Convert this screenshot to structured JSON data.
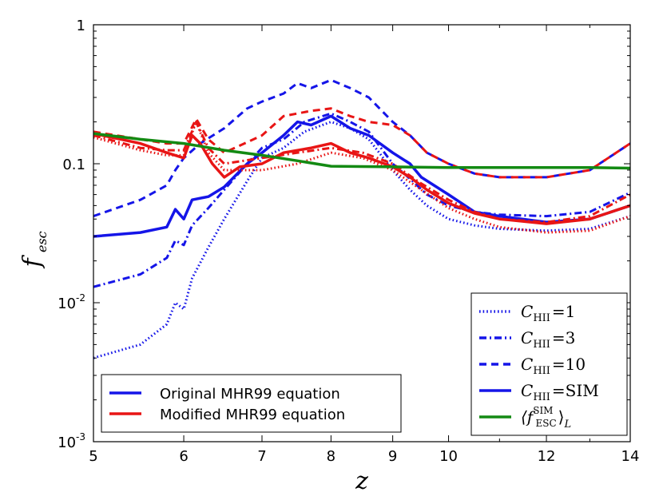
{
  "chart_data": {
    "type": "line",
    "title": "",
    "xlabel": "z",
    "ylabel_main": "f",
    "ylabel_sub": "esc",
    "xscale": "linear-in-log(1+z)",
    "yscale": "log",
    "xlim": [
      5,
      14
    ],
    "ylim": [
      0.001,
      1
    ],
    "x_ticks": [
      5,
      6,
      7,
      8,
      9,
      10,
      12,
      14
    ],
    "x_tick_labels": [
      "5",
      "6",
      "7",
      "8",
      "9",
      "10",
      "12",
      "14"
    ],
    "y_ticks": [
      0.001,
      0.01,
      0.1,
      1
    ],
    "y_tick_labels": [
      {
        "base": "10",
        "exp": "-3"
      },
      {
        "base": "10",
        "exp": "-2"
      },
      {
        "base": "0.1",
        "exp": ""
      },
      {
        "base": "1",
        "exp": ""
      }
    ],
    "legend_top_right": {
      "position": "lower-right",
      "entries": [
        {
          "main": "C",
          "sub": "HII",
          "rest": "=1",
          "style": "dotted",
          "color": "#1515e8"
        },
        {
          "main": "C",
          "sub": "HII",
          "rest": "=3",
          "style": "dashdot",
          "color": "#1515e8"
        },
        {
          "main": "C",
          "sub": "HII",
          "rest": "=10",
          "style": "dashed",
          "color": "#1515e8"
        },
        {
          "main": "C",
          "sub": "HII",
          "rest": "=SIM",
          "style": "solid",
          "color": "#1515e8"
        },
        {
          "main": "⟨f",
          "sub": "ESC",
          "sup": "SIM",
          "rest": "⟩",
          "tail": "L",
          "style": "solid",
          "color": "#138a13"
        }
      ]
    },
    "legend_bottom_left": {
      "position": "lower-left",
      "entries": [
        {
          "label": "Original MHR99 equation",
          "color": "#1515e8"
        },
        {
          "label": "Modified MHR99 equation",
          "color": "#e81515"
        }
      ]
    },
    "series": [
      {
        "name": "Original C_HII=1",
        "color": "#1515e8",
        "style": "dotted",
        "points": [
          [
            5,
            0.004
          ],
          [
            5.5,
            0.005
          ],
          [
            5.8,
            0.007
          ],
          [
            5.9,
            0.01
          ],
          [
            6.0,
            0.009
          ],
          [
            6.1,
            0.015
          ],
          [
            6.3,
            0.025
          ],
          [
            6.5,
            0.04
          ],
          [
            6.8,
            0.075
          ],
          [
            7.0,
            0.11
          ],
          [
            7.3,
            0.13
          ],
          [
            7.6,
            0.17
          ],
          [
            8.0,
            0.2
          ],
          [
            8.3,
            0.18
          ],
          [
            8.6,
            0.15
          ],
          [
            9.0,
            0.09
          ],
          [
            9.3,
            0.065
          ],
          [
            9.6,
            0.05
          ],
          [
            10.0,
            0.04
          ],
          [
            10.5,
            0.036
          ],
          [
            11.0,
            0.034
          ],
          [
            12.0,
            0.033
          ],
          [
            13.0,
            0.034
          ],
          [
            14.0,
            0.042
          ]
        ]
      },
      {
        "name": "Original C_HII=3",
        "color": "#1515e8",
        "style": "dashdot",
        "points": [
          [
            5,
            0.013
          ],
          [
            5.5,
            0.016
          ],
          [
            5.8,
            0.021
          ],
          [
            5.9,
            0.028
          ],
          [
            6.0,
            0.026
          ],
          [
            6.1,
            0.036
          ],
          [
            6.3,
            0.048
          ],
          [
            6.5,
            0.065
          ],
          [
            6.8,
            0.1
          ],
          [
            7.0,
            0.13
          ],
          [
            7.3,
            0.15
          ],
          [
            7.6,
            0.2
          ],
          [
            8.0,
            0.23
          ],
          [
            8.3,
            0.2
          ],
          [
            8.6,
            0.17
          ],
          [
            9.0,
            0.1
          ],
          [
            9.3,
            0.078
          ],
          [
            9.6,
            0.06
          ],
          [
            10.0,
            0.05
          ],
          [
            10.5,
            0.045
          ],
          [
            11.0,
            0.043
          ],
          [
            12.0,
            0.042
          ],
          [
            13.0,
            0.045
          ],
          [
            14.0,
            0.062
          ]
        ]
      },
      {
        "name": "Original C_HII=10",
        "color": "#1515e8",
        "style": "dashed",
        "points": [
          [
            5,
            0.042
          ],
          [
            5.5,
            0.055
          ],
          [
            5.8,
            0.07
          ],
          [
            5.9,
            0.09
          ],
          [
            6.0,
            0.11
          ],
          [
            6.2,
            0.14
          ],
          [
            6.5,
            0.18
          ],
          [
            6.8,
            0.25
          ],
          [
            7.0,
            0.28
          ],
          [
            7.3,
            0.32
          ],
          [
            7.5,
            0.38
          ],
          [
            7.7,
            0.35
          ],
          [
            8.0,
            0.4
          ],
          [
            8.3,
            0.35
          ],
          [
            8.6,
            0.3
          ],
          [
            9.0,
            0.2
          ],
          [
            9.3,
            0.16
          ],
          [
            9.6,
            0.12
          ],
          [
            10.0,
            0.1
          ],
          [
            10.5,
            0.085
          ],
          [
            11.0,
            0.08
          ],
          [
            12.0,
            0.08
          ],
          [
            13.0,
            0.09
          ],
          [
            14.0,
            0.14
          ]
        ]
      },
      {
        "name": "Original C_HII=SIM",
        "color": "#1515e8",
        "style": "solid",
        "points": [
          [
            5,
            0.03
          ],
          [
            5.5,
            0.032
          ],
          [
            5.8,
            0.035
          ],
          [
            5.9,
            0.047
          ],
          [
            6.0,
            0.04
          ],
          [
            6.1,
            0.055
          ],
          [
            6.3,
            0.058
          ],
          [
            6.5,
            0.068
          ],
          [
            6.8,
            0.1
          ],
          [
            7.0,
            0.12
          ],
          [
            7.3,
            0.16
          ],
          [
            7.5,
            0.2
          ],
          [
            7.7,
            0.19
          ],
          [
            8.0,
            0.22
          ],
          [
            8.3,
            0.18
          ],
          [
            8.6,
            0.16
          ],
          [
            9.0,
            0.12
          ],
          [
            9.3,
            0.1
          ],
          [
            9.5,
            0.08
          ],
          [
            10.0,
            0.06
          ],
          [
            10.5,
            0.045
          ],
          [
            11.0,
            0.042
          ],
          [
            12.0,
            0.038
          ],
          [
            13.0,
            0.04
          ],
          [
            14.0,
            0.05
          ]
        ]
      },
      {
        "name": "Modified C_HII=1",
        "color": "#e81515",
        "style": "dotted",
        "points": [
          [
            5,
            0.155
          ],
          [
            5.5,
            0.125
          ],
          [
            5.8,
            0.115
          ],
          [
            6.0,
            0.115
          ],
          [
            6.15,
            0.2
          ],
          [
            6.3,
            0.12
          ],
          [
            6.5,
            0.09
          ],
          [
            7.0,
            0.09
          ],
          [
            7.5,
            0.1
          ],
          [
            8.0,
            0.12
          ],
          [
            8.5,
            0.11
          ],
          [
            9.0,
            0.09
          ],
          [
            9.5,
            0.065
          ],
          [
            10.0,
            0.048
          ],
          [
            10.5,
            0.04
          ],
          [
            11.0,
            0.035
          ],
          [
            12.0,
            0.032
          ],
          [
            13.0,
            0.033
          ],
          [
            14.0,
            0.042
          ]
        ]
      },
      {
        "name": "Modified C_HII=3",
        "color": "#e81515",
        "style": "dashdot",
        "points": [
          [
            5,
            0.16
          ],
          [
            5.5,
            0.13
          ],
          [
            5.8,
            0.125
          ],
          [
            6.0,
            0.125
          ],
          [
            6.15,
            0.2
          ],
          [
            6.3,
            0.13
          ],
          [
            6.5,
            0.1
          ],
          [
            7.0,
            0.11
          ],
          [
            7.5,
            0.12
          ],
          [
            8.0,
            0.13
          ],
          [
            8.5,
            0.12
          ],
          [
            9.0,
            0.1
          ],
          [
            9.5,
            0.072
          ],
          [
            10.0,
            0.055
          ],
          [
            10.5,
            0.045
          ],
          [
            11.0,
            0.04
          ],
          [
            12.0,
            0.038
          ],
          [
            13.0,
            0.042
          ],
          [
            14.0,
            0.06
          ]
        ]
      },
      {
        "name": "Modified C_HII=10",
        "color": "#e81515",
        "style": "dashed",
        "points": [
          [
            5,
            0.17
          ],
          [
            5.5,
            0.15
          ],
          [
            5.8,
            0.14
          ],
          [
            6.0,
            0.14
          ],
          [
            6.15,
            0.21
          ],
          [
            6.3,
            0.15
          ],
          [
            6.5,
            0.12
          ],
          [
            7.0,
            0.16
          ],
          [
            7.3,
            0.22
          ],
          [
            7.7,
            0.24
          ],
          [
            8.0,
            0.25
          ],
          [
            8.3,
            0.22
          ],
          [
            8.6,
            0.2
          ],
          [
            9.0,
            0.19
          ],
          [
            9.3,
            0.16
          ],
          [
            9.6,
            0.12
          ],
          [
            10.0,
            0.1
          ],
          [
            10.5,
            0.085
          ],
          [
            11.0,
            0.08
          ],
          [
            12.0,
            0.08
          ],
          [
            13.0,
            0.09
          ],
          [
            14.0,
            0.14
          ]
        ]
      },
      {
        "name": "Modified C_HII=SIM",
        "color": "#e81515",
        "style": "solid",
        "points": [
          [
            5,
            0.165
          ],
          [
            5.5,
            0.14
          ],
          [
            5.8,
            0.12
          ],
          [
            6.0,
            0.11
          ],
          [
            6.1,
            0.16
          ],
          [
            6.2,
            0.14
          ],
          [
            6.35,
            0.1
          ],
          [
            6.5,
            0.08
          ],
          [
            6.7,
            0.095
          ],
          [
            7.0,
            0.1
          ],
          [
            7.3,
            0.12
          ],
          [
            7.7,
            0.13
          ],
          [
            8.0,
            0.14
          ],
          [
            8.3,
            0.12
          ],
          [
            8.6,
            0.11
          ],
          [
            9.0,
            0.095
          ],
          [
            9.3,
            0.08
          ],
          [
            9.6,
            0.065
          ],
          [
            10.0,
            0.052
          ],
          [
            10.5,
            0.044
          ],
          [
            11.0,
            0.04
          ],
          [
            12.0,
            0.037
          ],
          [
            13.0,
            0.04
          ],
          [
            14.0,
            0.05
          ]
        ]
      },
      {
        "name": "<f_ESC^SIM>_L",
        "color": "#138a13",
        "style": "solid",
        "points": [
          [
            5,
            0.165
          ],
          [
            5.5,
            0.15
          ],
          [
            6.0,
            0.14
          ],
          [
            6.5,
            0.125
          ],
          [
            7.0,
            0.115
          ],
          [
            7.5,
            0.105
          ],
          [
            8.0,
            0.096
          ],
          [
            9.0,
            0.095
          ],
          [
            10.0,
            0.094
          ],
          [
            11.0,
            0.094
          ],
          [
            12.0,
            0.094
          ],
          [
            13.0,
            0.094
          ],
          [
            14.0,
            0.093
          ]
        ]
      }
    ]
  }
}
